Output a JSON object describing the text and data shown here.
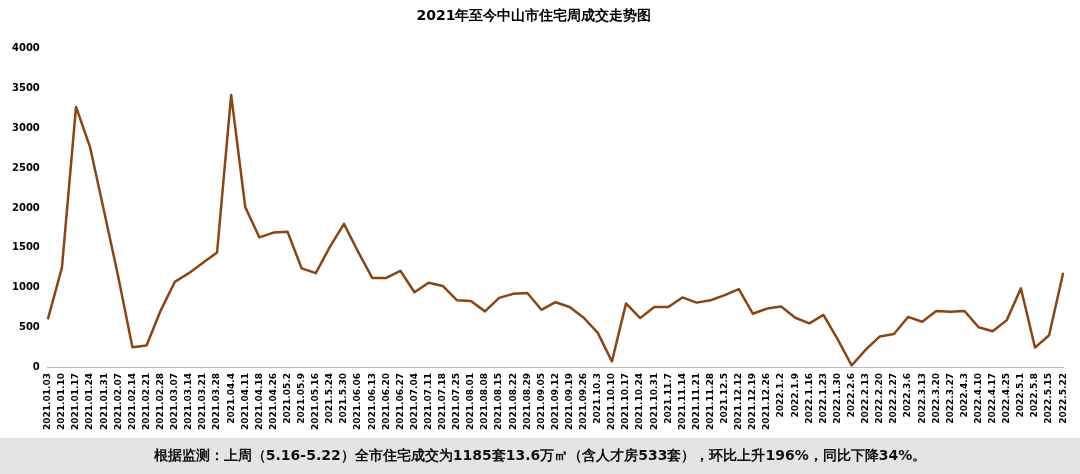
{
  "chart_data": {
    "type": "line",
    "title": "2021年至今中山市住宅周成交走势图",
    "categories": [
      "2021.01.03",
      "2021.01.10",
      "2021.01.17",
      "2021.01.24",
      "2021.01.31",
      "2021.02.07",
      "2021.02.14",
      "2021.02.21",
      "2021.02.28",
      "2021.03.07",
      "2021.03.14",
      "2021.03.21",
      "2021.03.28",
      "2021.04.4",
      "2021.04.11",
      "2021.04.18",
      "2021.04.26",
      "2021.05.2",
      "2021.05.9",
      "2021.05.16",
      "2021.5.24",
      "2021.5.30",
      "2021.06.06",
      "2021.06.13",
      "2021.06.20",
      "2021.06.27",
      "2021.07.04",
      "2021.07.11",
      "2021.07.18",
      "2021.07.25",
      "2021.08.01",
      "2021.08.08",
      "2021.08.15",
      "2021.08.22",
      "2021.08.29",
      "2021.09.05",
      "2021.09.12",
      "2021.09.19",
      "2021.09.26",
      "2021.10.3",
      "2021.10.10",
      "2021.10.17",
      "2021.10.24",
      "2021.10.31",
      "2021.11.7",
      "2021.11.14",
      "2021.11.21",
      "2021.11.28",
      "2021.12.5",
      "2021.12.12",
      "2021.12.19",
      "2021.12.26",
      "2022.1.2",
      "2022.1.9",
      "2022.1.16",
      "2022.1.23",
      "2022.1.30",
      "2022.2.6",
      "2022.2.13",
      "2022.2.20",
      "2022.2.27",
      "2022.3.6",
      "2022.3.13",
      "2022.3.20",
      "2022.3.27",
      "2022.4.3",
      "2022.4.10",
      "2022.4.17",
      "2022.4.25",
      "2022.5.1",
      "2022.5.8",
      "2022.5.15",
      "2022.5.22"
    ],
    "series": [
      {
        "color": "#8b4513",
        "values": [
          600,
          1250,
          3270,
          2760,
          1950,
          1130,
          250,
          270,
          710,
          1070,
          1180,
          1310,
          1440,
          3420,
          2010,
          1630,
          1690,
          1700,
          1240,
          1180,
          1510,
          1800,
          1450,
          1120,
          1120,
          1210,
          940,
          1060,
          1020,
          840,
          830,
          700,
          870,
          920,
          930,
          720,
          815,
          755,
          620,
          430,
          70,
          800,
          615,
          755,
          755,
          875,
          810,
          840,
          905,
          980,
          670,
          735,
          760,
          620,
          550,
          655,
          350,
          20,
          220,
          385,
          415,
          630,
          570,
          705,
          695,
          705,
          500,
          450,
          590,
          990,
          245,
          400,
          1185
        ]
      }
    ],
    "ylim": [
      0,
      4000
    ],
    "yticks": [
      0,
      500,
      1000,
      1500,
      2000,
      2500,
      3000,
      3500,
      4000
    ],
    "marker": "none",
    "annotations": [
      "根据监测：上周（5.16-5.22）全市住宅成交为1185套13.6万㎡（含人才房533套），环比上升196%，同比下降34%。"
    ]
  }
}
